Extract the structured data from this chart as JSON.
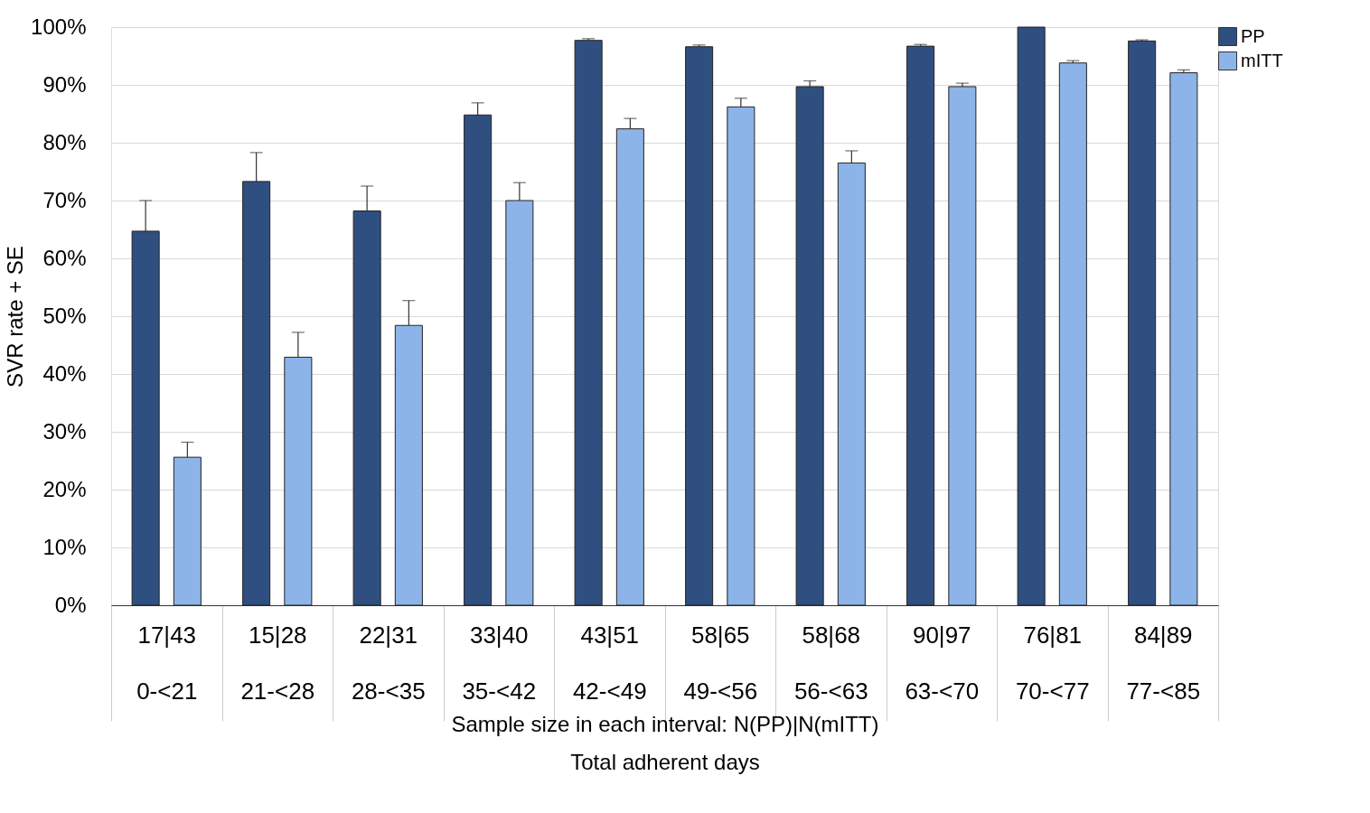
{
  "chart_data": {
    "type": "bar",
    "categories": [
      "17|43\n0-<21",
      "15|28\n21-<28",
      "22|31\n28-<35",
      "33|40\n35-<42",
      "43|51\n42-<49",
      "58|65\n49-<56",
      "58|68\n56-<63",
      "90|97\n63-<70",
      "76|81\n70-<77",
      "84|89\n77-<85"
    ],
    "series": [
      {
        "name": "PP",
        "color": "#2f4f80",
        "values": [
          64.7,
          73.3,
          68.2,
          84.8,
          97.7,
          96.6,
          89.7,
          96.7,
          100,
          97.6
        ],
        "errors": [
          [
            64.7,
            70.0
          ],
          [
            73.3,
            78.3
          ],
          [
            68.2,
            72.5
          ],
          [
            84.8,
            86.9
          ],
          [
            97.7,
            98.0
          ],
          [
            96.6,
            96.9
          ],
          [
            89.7,
            90.7
          ],
          [
            96.7,
            97.0
          ],
          null,
          [
            97.6,
            97.8
          ]
        ]
      },
      {
        "name": "mITT",
        "color": "#8db4e8",
        "values": [
          25.6,
          42.9,
          48.4,
          70.0,
          82.4,
          86.2,
          76.5,
          89.7,
          93.8,
          92.1
        ],
        "errors": [
          [
            25.6,
            28.2
          ],
          [
            42.9,
            47.2
          ],
          [
            48.4,
            52.7
          ],
          [
            70.0,
            73.1
          ],
          [
            82.4,
            84.2
          ],
          [
            86.2,
            87.7
          ],
          [
            76.5,
            78.6
          ],
          [
            89.7,
            90.3
          ],
          [
            93.8,
            94.2
          ],
          [
            92.1,
            92.6
          ]
        ]
      }
    ],
    "ylabel": "SVR rate + SE",
    "xlabel": "Sample size in each interval: N(PP)|N(mITT)\nTotal adherent days",
    "ylim": [
      0,
      100
    ],
    "yticks": [
      {
        "value": 0,
        "label": "0%"
      },
      {
        "value": 10,
        "label": "10%"
      },
      {
        "value": 20,
        "label": "20%"
      },
      {
        "value": 30,
        "label": "30%"
      },
      {
        "value": 40,
        "label": "40%"
      },
      {
        "value": 50,
        "label": "50%"
      },
      {
        "value": 60,
        "label": "60%"
      },
      {
        "value": 70,
        "label": "70%"
      },
      {
        "value": 80,
        "label": "80%"
      },
      {
        "value": 90,
        "label": "90%"
      },
      {
        "value": 100,
        "label": "100%"
      }
    ],
    "grid": "y",
    "legend": "top right"
  }
}
